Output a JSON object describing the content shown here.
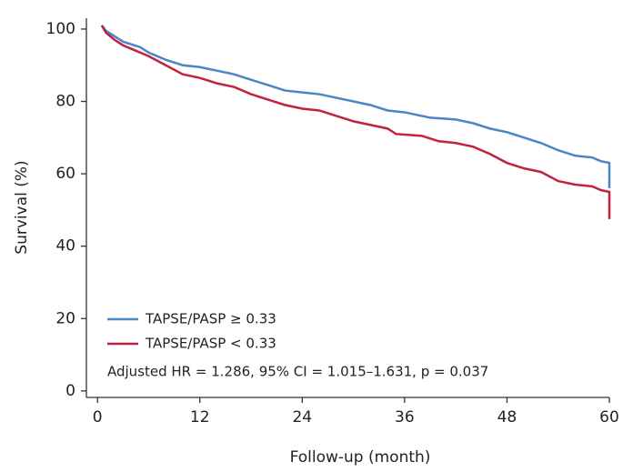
{
  "chart_data": {
    "type": "line",
    "x_label": "Follow-up (month)",
    "y_label": "Survival (%)",
    "xlim": [
      -1.3,
      60
    ],
    "ylim": [
      -1.8,
      103
    ],
    "xticks": [
      0,
      12,
      24,
      36,
      48,
      60
    ],
    "yticks": [
      0,
      20,
      40,
      60,
      80,
      100
    ],
    "grid": false,
    "legend": "lower left",
    "annotation": "Adjusted HR = 1.286, 95% CI = 1.015–1.631, p = 0.037",
    "series": [
      {
        "name": "TAPSE/PASP ≥ 0.33",
        "color": "#4a86c5",
        "x": [
          0.5,
          1,
          2,
          3,
          5,
          6,
          8,
          10,
          12,
          14,
          16,
          18,
          20,
          22,
          24,
          26,
          28,
          30,
          32,
          34,
          36,
          38,
          39,
          42,
          44,
          46,
          48,
          50,
          52,
          54,
          56,
          58,
          59,
          60,
          60
        ],
        "values": [
          101,
          99.5,
          98,
          96.5,
          95,
          93.5,
          91.5,
          90,
          89.5,
          88.5,
          87.5,
          86,
          84.5,
          83,
          82.5,
          82,
          81,
          80,
          79,
          77.5,
          77,
          76,
          75.5,
          75,
          74,
          72.5,
          71.5,
          70,
          68.5,
          66.5,
          65,
          64.5,
          63.5,
          63,
          56
        ]
      },
      {
        "name": "TAPSE/PASP < 0.33",
        "color": "#c0223f",
        "x": [
          0.5,
          1,
          2,
          3,
          4,
          6,
          8,
          10,
          12,
          14,
          16,
          18,
          20,
          22,
          24,
          26,
          28,
          30,
          32,
          34,
          35,
          38,
          40,
          42,
          44,
          46,
          48,
          50,
          52,
          54,
          56,
          58,
          59,
          60,
          60
        ],
        "values": [
          101,
          99,
          97,
          95.5,
          94.5,
          92.5,
          90,
          87.5,
          86.5,
          85,
          84,
          82,
          80.5,
          79,
          78,
          77.5,
          76,
          74.5,
          73.5,
          72.5,
          71,
          70.5,
          69,
          68.5,
          67.5,
          65.5,
          63,
          61.5,
          60.5,
          58,
          57,
          56.5,
          55.5,
          55,
          47.5
        ]
      }
    ]
  }
}
